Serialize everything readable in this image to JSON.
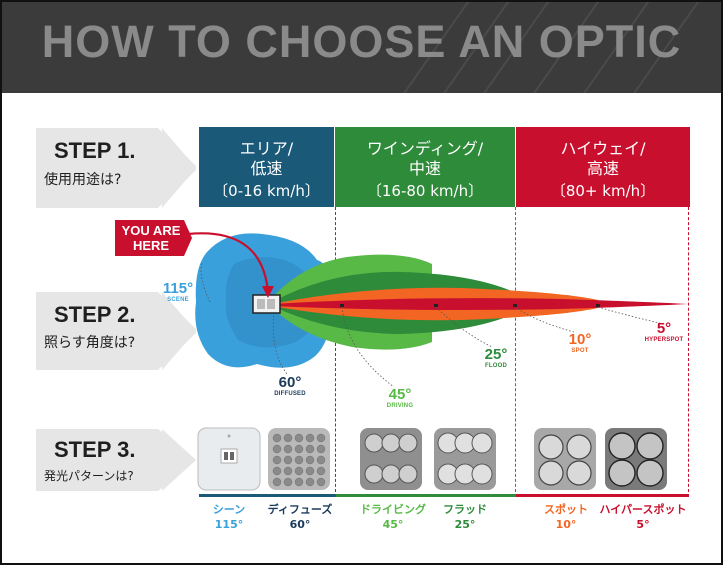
{
  "header": {
    "title": "HOW TO CHOOSE AN OPTIC"
  },
  "steps": [
    {
      "title": "STEP 1.",
      "subtitle": "使用用途は?"
    },
    {
      "title": "STEP 2.",
      "subtitle": "照らす角度は?"
    },
    {
      "title": "STEP 3.",
      "subtitle": "発光パターンは?"
    }
  ],
  "speeds": [
    {
      "line1": "エリア/",
      "line2": "低速",
      "line3": "〔0-16 km/h〕",
      "color": "#1a5a78"
    },
    {
      "line1": "ワインディング/",
      "line2": "中速",
      "line3": "〔16-80 km/h〕",
      "color": "#2e8b3a"
    },
    {
      "line1": "ハイウェイ/",
      "line2": "高速",
      "line3": "〔80+ km/h〕",
      "color": "#c8102e"
    }
  ],
  "you_are_here": {
    "line1": "YOU ARE",
    "line2": "HERE"
  },
  "beams": [
    {
      "deg": "115°",
      "name": "SCENE",
      "color": "#3aa0dc"
    },
    {
      "deg": "60°",
      "name": "DIFFUSED",
      "color": "#1a3a5a"
    },
    {
      "deg": "45°",
      "name": "DRIVING",
      "color": "#58b947"
    },
    {
      "deg": "25°",
      "name": "FLOOD",
      "color": "#2e8b3a"
    },
    {
      "deg": "10°",
      "name": "SPOT",
      "color": "#f26522"
    },
    {
      "deg": "5°",
      "name": "HYPERSPOT",
      "color": "#c8102e"
    }
  ],
  "patterns": [
    {
      "name": "シーン",
      "deg": "115°",
      "color": "#3aa0dc"
    },
    {
      "name": "ディフューズ",
      "deg": "60°",
      "color": "#1a3a5a"
    },
    {
      "name": "ドライビング",
      "deg": "45°",
      "color": "#58b947"
    },
    {
      "name": "フラッド",
      "deg": "25°",
      "color": "#2e8b3a"
    },
    {
      "name": "スポット",
      "deg": "10°",
      "color": "#f26522"
    },
    {
      "name": "ハイパースポット",
      "deg": "5°",
      "color": "#c8102e"
    }
  ]
}
